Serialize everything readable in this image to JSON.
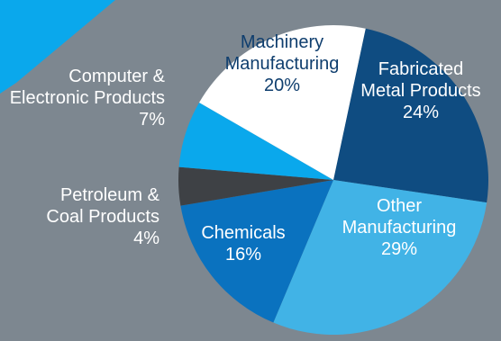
{
  "chart_data": {
    "type": "pie",
    "slices": [
      {
        "label_lines": [
          "Fabricated",
          "Metal Products"
        ],
        "percent_label": "24%",
        "value": 24,
        "color": "#0f4c81"
      },
      {
        "label_lines": [
          "Other",
          "Manufacturing"
        ],
        "percent_label": "29%",
        "value": 29,
        "color": "#41b3e6"
      },
      {
        "label_lines": [
          "Chemicals"
        ],
        "percent_label": "16%",
        "value": 16,
        "color": "#0a72bf"
      },
      {
        "label_lines": [
          "Petroleum &",
          "Coal Products"
        ],
        "percent_label": "4%",
        "value": 4,
        "color": "#3e4145"
      },
      {
        "label_lines": [
          "Computer &",
          "Electronic Products"
        ],
        "percent_label": "7%",
        "value": 7,
        "color": "#0aa8ec"
      },
      {
        "label_lines": [
          "Machinery",
          "Manufacturing"
        ],
        "percent_label": "20%",
        "value": 20,
        "color": "#ffffff"
      }
    ],
    "label_colors": {
      "inside_light": "#ffffff",
      "inside_dark": "#0f3e6e"
    },
    "decoration_color": "#0aa8ec"
  }
}
